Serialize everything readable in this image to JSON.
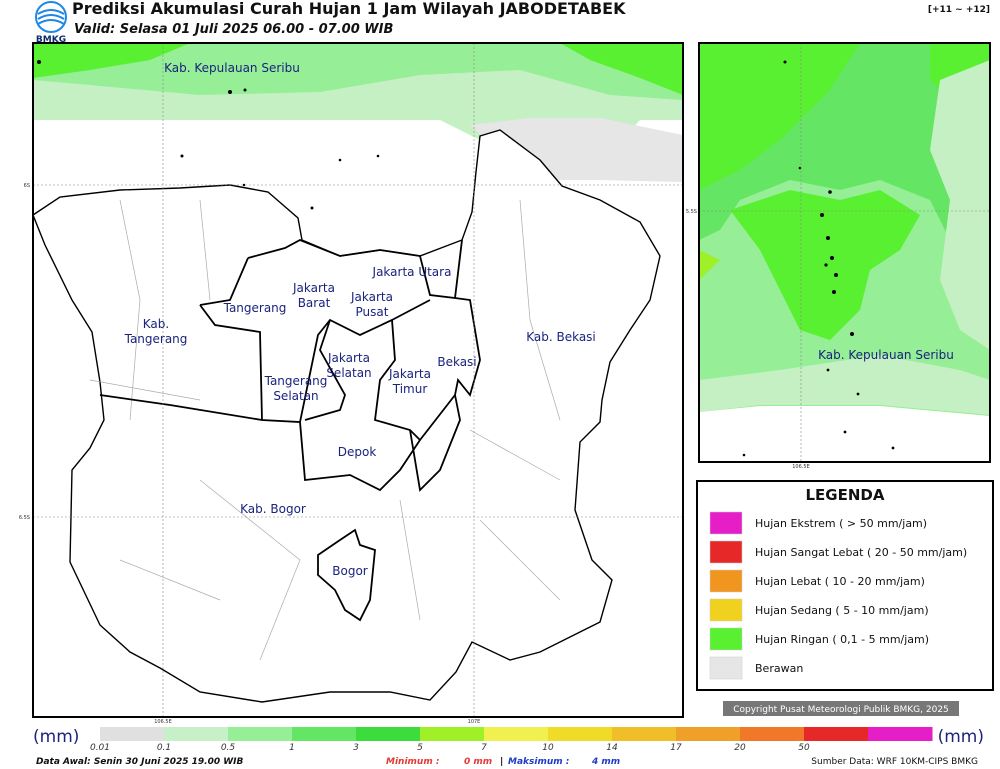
{
  "header": {
    "logo": "BMKG",
    "title": "Prediksi Akumulasi Curah Hujan 1 Jam Wilayah JABODETABEK",
    "subtitle": "Valid: Selasa 01 Juli 2025 06.00 - 07.00 WIB",
    "step": "[+11 ~ +12]"
  },
  "main_map": {
    "labels": [
      {
        "lines": [
          "Kab. Kepulauan Seribu"
        ]
      },
      {
        "lines": [
          "Jakarta Utara"
        ]
      },
      {
        "lines": [
          "Jakarta",
          "Barat"
        ]
      },
      {
        "lines": [
          "Jakarta",
          "Pusat"
        ]
      },
      {
        "lines": [
          "Tangerang"
        ]
      },
      {
        "lines": [
          "Kab.",
          "Tangerang"
        ]
      },
      {
        "lines": [
          "Jakarta",
          "Selatan"
        ]
      },
      {
        "lines": [
          "Jakarta",
          "Timur"
        ]
      },
      {
        "lines": [
          "Bekasi"
        ]
      },
      {
        "lines": [
          "Kab. Bekasi"
        ]
      },
      {
        "lines": [
          "Tangerang",
          "Selatan"
        ]
      },
      {
        "lines": [
          "Depok"
        ]
      },
      {
        "lines": [
          "Kab. Bogor"
        ]
      },
      {
        "lines": [
          "Bogor"
        ]
      }
    ],
    "lat_labels": [
      "6S",
      "6.5S"
    ],
    "lon_labels": [
      "106.5E",
      "107E"
    ]
  },
  "inset_map": {
    "label": "Kab. Kepulauan Seribu",
    "lat_labels": [
      "5.5S"
    ],
    "lon_labels": [
      "106.5E"
    ]
  },
  "legend": {
    "title": "LEGENDA",
    "items": [
      {
        "label": "Hujan Ekstrem ( > 50 mm/jam)",
        "color": "#e61ec8"
      },
      {
        "label": "Hujan Sangat Lebat ( 20 - 50 mm/jam)",
        "color": "#e62828"
      },
      {
        "label": "Hujan Lebat ( 10 - 20 mm/jam)",
        "color": "#f0961e"
      },
      {
        "label": "Hujan Sedang ( 5 - 10 mm/jam)",
        "color": "#f0d21e"
      },
      {
        "label": "Hujan Ringan ( 0,1 - 5 mm/jam)",
        "color": "#5af032"
      },
      {
        "label": "Berawan",
        "color": "#e6e6e6"
      }
    ]
  },
  "copyright": "Copyright Pusat Meteorologi Publik BMKG, 2025",
  "colorbar": {
    "unit_left": "(mm)",
    "unit_right": "(mm)",
    "labels": [
      "0.01",
      "0.1",
      "0.5",
      "1",
      "3",
      "5",
      "7",
      "10",
      "14",
      "17",
      "20",
      "50"
    ],
    "colors": [
      "#e0e0e0",
      "#c8f0c8",
      "#96ee96",
      "#64e664",
      "#3cdc3c",
      "#a0f028",
      "#f0f050",
      "#f0dc28",
      "#f0be28",
      "#f0a028",
      "#f07828",
      "#e62828",
      "#e61ec8"
    ]
  },
  "footer": {
    "data_awal": "Data Awal: Senin 30 Juni 2025 19.00 WIB",
    "min_label": "Minimum :",
    "min_value": "0 mm",
    "separator": "|",
    "max_label": "Maksimum :",
    "max_value": "4 mm",
    "source": "Sumber Data: WRF 10KM-CIPS BMKG"
  }
}
